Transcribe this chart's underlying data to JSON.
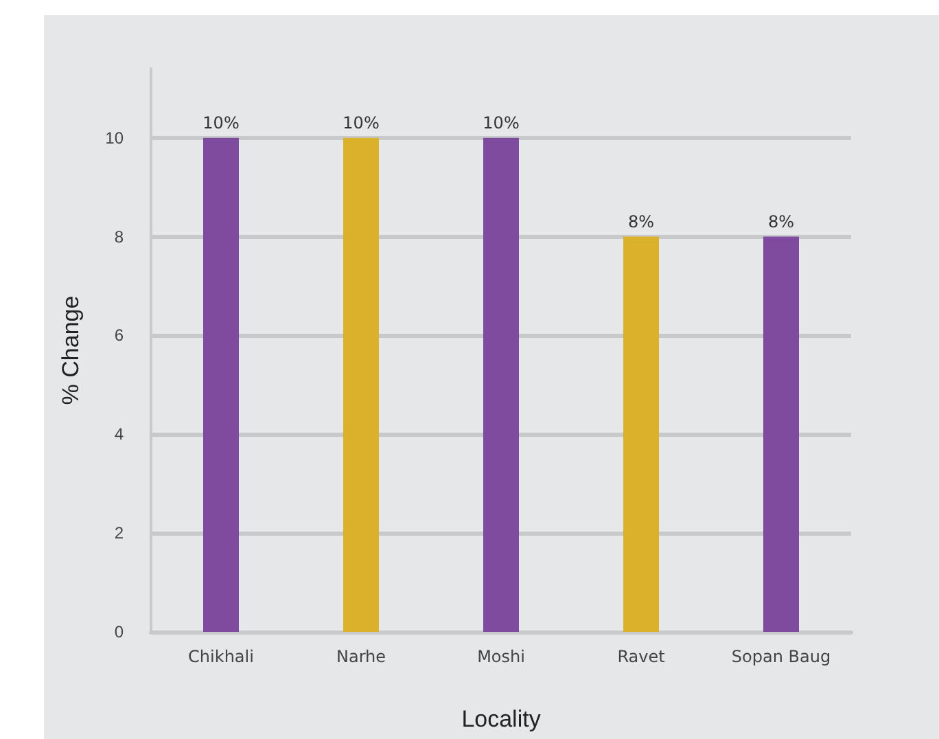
{
  "chart_data": {
    "type": "bar",
    "xlabel": "Locality",
    "ylabel": "% Change",
    "categories": [
      "Chikhali",
      "Narhe",
      "Moshi",
      "Ravet",
      "Sopan Baug"
    ],
    "values": [
      10,
      10,
      10,
      8,
      8
    ],
    "colors": [
      "#7f4b9e",
      "#d9b12a",
      "#7f4b9e",
      "#d9b12a",
      "#7f4b9e"
    ],
    "value_labels": [
      "10%",
      "10%",
      "10%",
      "8%",
      "8%"
    ],
    "ylim": [
      0,
      11.4
    ],
    "yticks": [
      0,
      2,
      4,
      6,
      8,
      10
    ],
    "grid": "y"
  }
}
